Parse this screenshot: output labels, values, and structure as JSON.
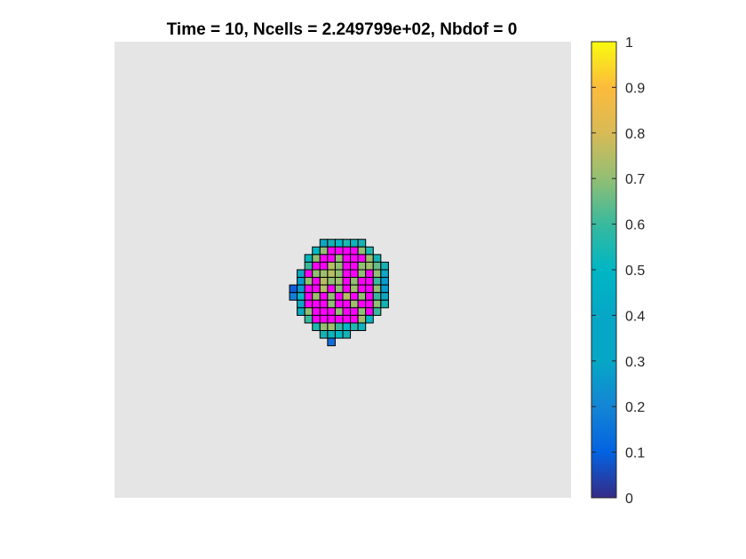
{
  "chart_data": {
    "type": "heatmap",
    "title": "Time = 10, Ncells = 2.249799e+02, Nbdof = 0",
    "xlabel": "",
    "ylabel": "",
    "axes_visible": false,
    "domain_color": "#e5e5e5",
    "cell_edge_color": "#000000",
    "highlight_color": "#ff00ff",
    "colormap": "parula",
    "colorbar": {
      "location": "right",
      "clim": [
        0,
        1
      ],
      "ticks": [
        0,
        0.1,
        0.2,
        0.3,
        0.4,
        0.5,
        0.6,
        0.7,
        0.8,
        0.9,
        1
      ],
      "tick_labels": [
        "0",
        "0.1",
        "0.2",
        "0.3",
        "0.4",
        "0.5",
        "0.6",
        "0.7",
        "0.8",
        "0.9",
        "1"
      ]
    },
    "grid_size": [
      60,
      60
    ],
    "cluster": {
      "rows": [
        {
          "row": 26,
          "cols": [
            27,
            32
          ],
          "values": [
            0.35,
            0.4,
            0.5,
            0.55,
            0.45,
            0.4
          ]
        },
        {
          "row": 27,
          "cols": [
            26,
            33
          ],
          "values": [
            0.5,
            0.7,
            "M",
            "M",
            "M",
            "M",
            0.7,
            0.55
          ]
        },
        {
          "row": 28,
          "cols": [
            25,
            34
          ],
          "values": [
            0.45,
            0.7,
            "M",
            "M",
            0.7,
            "M",
            "M",
            "M",
            0.72,
            0.4
          ]
        },
        {
          "row": 29,
          "cols": [
            25,
            35
          ],
          "values": [
            0.6,
            "M",
            "M",
            0.75,
            0.7,
            "M",
            "M",
            0.7,
            0.72,
            0.65,
            0.4
          ]
        },
        {
          "row": 30,
          "cols": [
            24,
            35
          ],
          "values": [
            0.35,
            "M",
            0.7,
            0.72,
            0.75,
            0.7,
            "M",
            "M",
            0.7,
            "M",
            0.7,
            0.35
          ]
        },
        {
          "row": 31,
          "cols": [
            24,
            35
          ],
          "values": [
            0.3,
            0.7,
            "M",
            0.75,
            0.7,
            0.72,
            "M",
            0.7,
            "M",
            "M",
            0.6,
            0.3
          ]
        },
        {
          "row": 32,
          "cols": [
            23,
            35
          ],
          "values": [
            0.1,
            0.3,
            "M",
            "M",
            0.75,
            "M",
            0.7,
            "M",
            0.72,
            "M",
            "M",
            0.7,
            0.3
          ]
        },
        {
          "row": 33,
          "cols": [
            23,
            35
          ],
          "values": [
            0.2,
            0.5,
            "M",
            0.72,
            "M",
            0.7,
            "M",
            0.75,
            "M",
            0.7,
            "M",
            0.6,
            0.35
          ]
        },
        {
          "row": 34,
          "cols": [
            24,
            35
          ],
          "values": [
            0.35,
            "M",
            "M",
            "M",
            0.7,
            "M",
            "M",
            0.72,
            "M",
            "M",
            0.7,
            0.4
          ]
        },
        {
          "row": 35,
          "cols": [
            24,
            34
          ],
          "values": [
            0.35,
            0.7,
            "M",
            "M",
            "M",
            0.7,
            "M",
            "M",
            0.7,
            "M",
            0.6
          ]
        },
        {
          "row": 36,
          "cols": [
            25,
            33
          ],
          "values": [
            0.6,
            "M",
            "M",
            "M",
            "M",
            "M",
            "M",
            0.72,
            0.5
          ]
        },
        {
          "row": 37,
          "cols": [
            26,
            32
          ],
          "values": [
            0.55,
            0.7,
            0.72,
            0.6,
            0.5,
            0.55,
            0.45
          ]
        },
        {
          "row": 38,
          "cols": [
            27,
            30
          ],
          "values": [
            0.4,
            0.45,
            0.5,
            0.4
          ]
        },
        {
          "row": 39,
          "cols": [
            28,
            28
          ],
          "values": [
            0.15
          ]
        }
      ]
    }
  }
}
